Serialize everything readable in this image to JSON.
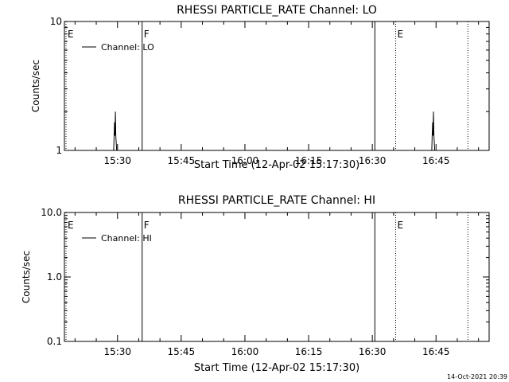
{
  "chart_data": [
    {
      "type": "line",
      "title": "RHESSI PARTICLE_RATE Channel: LO",
      "xlabel": "Start Time (12-Apr-02 15:17:30)",
      "ylabel": "Counts/sec",
      "x_ticks": [
        "15:30",
        "15:45",
        "16:00",
        "16:15",
        "16:30",
        "16:45"
      ],
      "x_tick_minutes": [
        930,
        945,
        960,
        975,
        990,
        1005
      ],
      "xlim_minutes": [
        917.5,
        1017.5
      ],
      "yscale": "log",
      "ylim": [
        1,
        10
      ],
      "y_ticks": [
        "1",
        "10"
      ],
      "y_tick_values": [
        1,
        10
      ],
      "series": [
        {
          "name": "Channel: LO",
          "x_minutes": [
            917.5,
            929.0,
            929.1,
            929.2,
            929.3,
            929.4,
            929.5,
            929.6,
            929.8,
            929.9,
            930.0,
            1003.9,
            1004.0,
            1004.1,
            1004.2,
            1004.3,
            1004.4,
            1004.5,
            1004.7,
            1004.8,
            1017.5
          ],
          "values": [
            1,
            1,
            1,
            1.3,
            1.65,
            1.3,
            2.0,
            1.3,
            1,
            1,
            1,
            1,
            1,
            1.3,
            1.65,
            1.3,
            2.0,
            1.3,
            1,
            1,
            1
          ]
        }
      ],
      "markers": [
        {
          "label": "E",
          "x_minutes": 917.5,
          "style": "dotted"
        },
        {
          "label": "F",
          "x_minutes": 935.8,
          "style": "solid"
        },
        {
          "label": "",
          "x_minutes": 990.6,
          "style": "solid"
        },
        {
          "label": "E",
          "x_minutes": 995.5,
          "style": "dotted"
        },
        {
          "label": "",
          "x_minutes": 1012.5,
          "style": "dotted"
        }
      ],
      "legend_label": "Channel: LO",
      "legend_position": "top-left"
    },
    {
      "type": "line",
      "title": "RHESSI PARTICLE_RATE Channel: HI",
      "xlabel": "Start Time (12-Apr-02 15:17:30)",
      "ylabel": "Counts/sec",
      "x_ticks": [
        "15:30",
        "15:45",
        "16:00",
        "16:15",
        "16:30",
        "16:45"
      ],
      "x_tick_minutes": [
        930,
        945,
        960,
        975,
        990,
        1005
      ],
      "xlim_minutes": [
        917.5,
        1017.5
      ],
      "yscale": "log",
      "ylim": [
        0.1,
        10
      ],
      "y_ticks": [
        "0.1",
        "1.0",
        "10.0"
      ],
      "y_tick_values": [
        0.1,
        1,
        10
      ],
      "series": [
        {
          "name": "Channel: HI",
          "x_minutes": [],
          "values": []
        }
      ],
      "markers": [
        {
          "label": "E",
          "x_minutes": 917.5,
          "style": "dotted"
        },
        {
          "label": "F",
          "x_minutes": 935.8,
          "style": "solid"
        },
        {
          "label": "",
          "x_minutes": 990.6,
          "style": "solid"
        },
        {
          "label": "E",
          "x_minutes": 995.5,
          "style": "dotted"
        },
        {
          "label": "",
          "x_minutes": 1012.5,
          "style": "dotted"
        }
      ],
      "legend_label": "Channel: HI",
      "legend_position": "top-left"
    }
  ],
  "footer": {
    "timestamp": "14-Oct-2021 20:39"
  }
}
